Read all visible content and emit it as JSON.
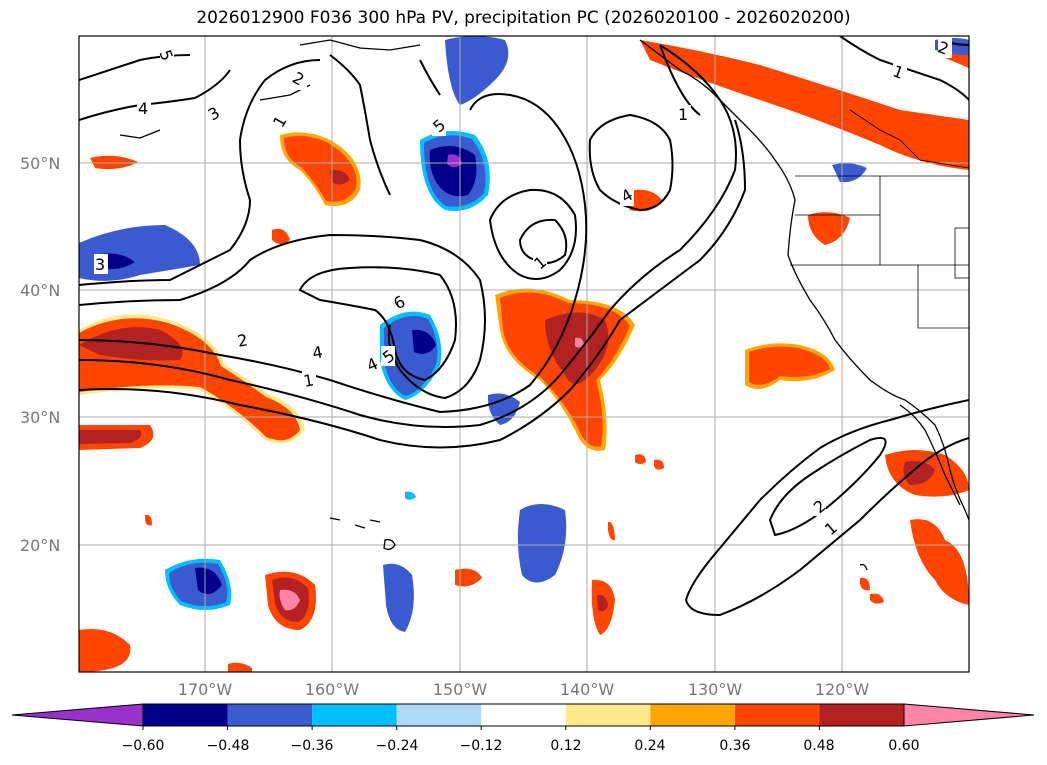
{
  "title": "2026012900 F036 300 hPa PV, precipitation PC (2026020100 - 2026020200)",
  "map": {
    "lon_labels": [
      "170°W",
      "160°W",
      "150°W",
      "140°W",
      "130°W",
      "120°W"
    ],
    "lat_labels": [
      "50°N",
      "40°N",
      "30°N",
      "20°N"
    ],
    "gridlines": true,
    "coastlines": true,
    "state_borders": true
  },
  "pv_contours": {
    "color": "#000000",
    "labels": [
      {
        "text": "5"
      },
      {
        "text": "4"
      },
      {
        "text": "3"
      },
      {
        "text": "2"
      },
      {
        "text": "1"
      },
      {
        "text": "5"
      },
      {
        "text": "1"
      },
      {
        "text": "4"
      },
      {
        "text": "3"
      },
      {
        "text": "2"
      },
      {
        "text": "1"
      },
      {
        "text": "6"
      },
      {
        "text": "4"
      },
      {
        "text": "5"
      },
      {
        "text": "4"
      },
      {
        "text": "1"
      },
      {
        "text": "1"
      },
      {
        "text": "2"
      },
      {
        "text": "2"
      },
      {
        "text": "1"
      }
    ]
  },
  "colorbar": {
    "ticks": [
      "−0.60",
      "−0.48",
      "−0.36",
      "−0.24",
      "−0.12",
      "0.12",
      "0.24",
      "0.36",
      "0.48",
      "0.60"
    ],
    "colors": [
      "#9932cc",
      "#00008b",
      "#3a5bd0",
      "#00bfff",
      "#add8f6",
      "#ffffff",
      "#ffe98a",
      "#ffa500",
      "#ff4500",
      "#b22222",
      "#ff85a8"
    ],
    "extend": "both"
  }
}
